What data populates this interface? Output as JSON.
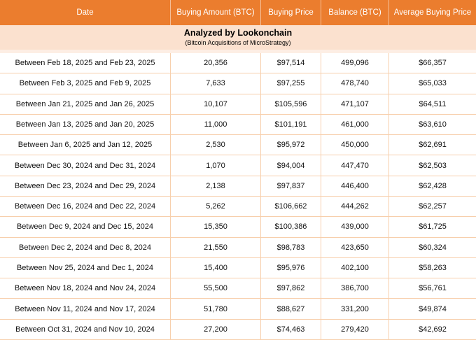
{
  "chart_data": {
    "type": "table",
    "title": "Analyzed by Lookonchain",
    "subtitle": "(Bitcoin Acquisitions of MicroStrategy)",
    "columns": [
      "Date",
      "Buying Amount (BTC)",
      "Buying Price",
      "Balance (BTC)",
      "Average Buying Price"
    ],
    "rows": [
      {
        "date": "Between Feb 18, 2025 and Feb 23, 2025",
        "buying_amount_btc": "20,356",
        "buying_price": "$97,514",
        "balance_btc": "499,096",
        "average_buying_price": "$66,357"
      },
      {
        "date": "Between Feb 3, 2025 and Feb 9, 2025",
        "buying_amount_btc": "7,633",
        "buying_price": "$97,255",
        "balance_btc": "478,740",
        "average_buying_price": "$65,033"
      },
      {
        "date": "Between Jan 21, 2025 and Jan 26, 2025",
        "buying_amount_btc": "10,107",
        "buying_price": "$105,596",
        "balance_btc": "471,107",
        "average_buying_price": "$64,511"
      },
      {
        "date": "Between Jan 13, 2025 and Jan 20, 2025",
        "buying_amount_btc": "11,000",
        "buying_price": "$101,191",
        "balance_btc": "461,000",
        "average_buying_price": "$63,610"
      },
      {
        "date": "Between Jan 6, 2025 and Jan 12, 2025",
        "buying_amount_btc": "2,530",
        "buying_price": "$95,972",
        "balance_btc": "450,000",
        "average_buying_price": "$62,691"
      },
      {
        "date": "Between Dec 30, 2024 and Dec 31, 2024",
        "buying_amount_btc": "1,070",
        "buying_price": "$94,004",
        "balance_btc": "447,470",
        "average_buying_price": "$62,503"
      },
      {
        "date": "Between Dec 23, 2024 and Dec 29, 2024",
        "buying_amount_btc": "2,138",
        "buying_price": "$97,837",
        "balance_btc": "446,400",
        "average_buying_price": "$62,428"
      },
      {
        "date": "Between Dec 16, 2024 and Dec 22, 2024",
        "buying_amount_btc": "5,262",
        "buying_price": "$106,662",
        "balance_btc": "444,262",
        "average_buying_price": "$62,257"
      },
      {
        "date": "Between Dec 9, 2024 and Dec 15, 2024",
        "buying_amount_btc": "15,350",
        "buying_price": "$100,386",
        "balance_btc": "439,000",
        "average_buying_price": "$61,725"
      },
      {
        "date": "Between Dec 2, 2024 and Dec 8, 2024",
        "buying_amount_btc": "21,550",
        "buying_price": "$98,783",
        "balance_btc": "423,650",
        "average_buying_price": "$60,324"
      },
      {
        "date": "Between Nov 25, 2024 and Dec 1, 2024",
        "buying_amount_btc": "15,400",
        "buying_price": "$95,976",
        "balance_btc": "402,100",
        "average_buying_price": "$58,263"
      },
      {
        "date": "Between Nov 18, 2024 and Nov 24, 2024",
        "buying_amount_btc": "55,500",
        "buying_price": "$97,862",
        "balance_btc": "386,700",
        "average_buying_price": "$56,761"
      },
      {
        "date": "Between Nov 11, 2024 and Nov 17, 2024",
        "buying_amount_btc": "51,780",
        "buying_price": "$88,627",
        "balance_btc": "331,200",
        "average_buying_price": "$49,874"
      },
      {
        "date": "Between Oct 31, 2024 and Nov 10, 2024",
        "buying_amount_btc": "27,200",
        "buying_price": "$74,463",
        "balance_btc": "279,420",
        "average_buying_price": "$42,692"
      }
    ],
    "layout": {
      "grid": true,
      "header_position": "top",
      "banner_row": true
    }
  },
  "colors": {
    "header_bg": "#EB7D2E",
    "banner_bg": "#FBE1CF",
    "banner_strip": "#FDEEE4",
    "grid_border": "#F7CFAC",
    "header_text": "#FFFFFF",
    "cell_text": "#111111"
  }
}
